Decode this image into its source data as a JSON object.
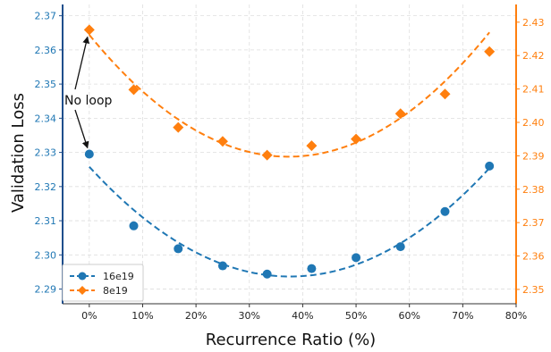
{
  "chart_data": {
    "type": "scatter",
    "xlabel": "Recurrence Ratio (%)",
    "ylabel": "Validation Loss",
    "x_ticks": [
      "0%",
      "10%",
      "20%",
      "30%",
      "40%",
      "50%",
      "60%",
      "70%",
      "80%"
    ],
    "xlim": [
      -5,
      80
    ],
    "ylim_left": [
      2.2857,
      2.3733
    ],
    "ylim_right": [
      2.3457,
      2.4353
    ],
    "y_ticks_left": [
      "2.29",
      "2.30",
      "2.31",
      "2.32",
      "2.33",
      "2.34",
      "2.35",
      "2.36",
      "2.37"
    ],
    "y_ticks_right": [
      "2.35",
      "2.36",
      "2.37",
      "2.38",
      "2.39",
      "2.40",
      "2.41",
      "2.42",
      "2.43"
    ],
    "grid": true,
    "legend_position": "bottom-left",
    "annotation": "No loop",
    "colors": {
      "left_axis": "#1f77b4",
      "right_axis": "#ff7f0e",
      "spine_left": "#1f4e8c"
    },
    "series": [
      {
        "name": "16e19",
        "axis": "left",
        "marker": "circle",
        "color": "#1f77b4",
        "x": [
          0,
          8.33,
          16.67,
          25,
          33.33,
          41.67,
          50,
          58.33,
          66.67,
          75
        ],
        "y": [
          2.3295,
          2.3085,
          2.3018,
          2.2968,
          2.2944,
          2.296,
          2.2992,
          2.3024,
          2.3127,
          2.326
        ],
        "fit": [
          2.3258,
          -0.001708,
          2.27e-05
        ]
      },
      {
        "name": "8e19",
        "axis": "right",
        "marker": "diamond",
        "color": "#ff7f0e",
        "x": [
          0,
          8.33,
          16.67,
          25,
          33.33,
          41.67,
          50,
          58.33,
          66.67,
          75
        ],
        "y": [
          2.4277,
          2.4098,
          2.3985,
          2.3943,
          2.3902,
          2.393,
          2.395,
          2.4026,
          2.4085,
          2.4212
        ],
        "fit": [
          2.4262,
          -0.001955,
          2.62e-05
        ]
      }
    ]
  }
}
